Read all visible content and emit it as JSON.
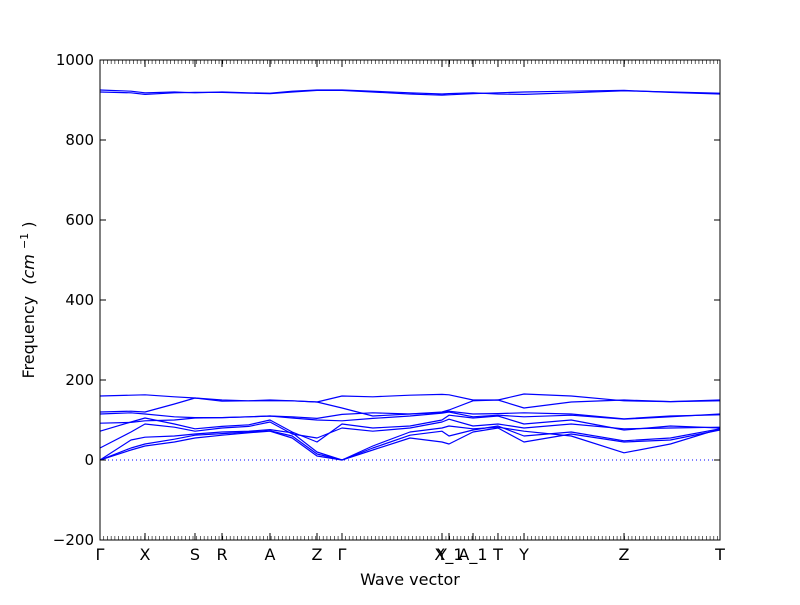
{
  "chart_data": {
    "type": "line",
    "title": "",
    "xlabel": "Wave vector",
    "ylabel": "Frequency",
    "ylabel_unit": "(cm",
    "ylabel_exp": "−1",
    "ylabel_close": ")",
    "ylim": [
      -200,
      1000
    ],
    "yticks": [
      {
        "value": -200,
        "label": "−200"
      },
      {
        "value": 0,
        "label": "0"
      },
      {
        "value": 200,
        "label": "200"
      },
      {
        "value": 400,
        "label": "400"
      },
      {
        "value": 600,
        "label": "600"
      },
      {
        "value": 800,
        "label": "800"
      },
      {
        "value": 1000,
        "label": "1000"
      }
    ],
    "xlim": [
      0,
      100
    ],
    "xticks": [
      {
        "value": 0,
        "label": "Γ"
      },
      {
        "value": 7.26,
        "label": "X"
      },
      {
        "value": 15.32,
        "label": "S"
      },
      {
        "value": 19.68,
        "label": "R"
      },
      {
        "value": 27.42,
        "label": "A"
      },
      {
        "value": 35.0,
        "label": "Z"
      },
      {
        "value": 39.03,
        "label": "Γ"
      },
      {
        "value": 55.16,
        "label": "Y"
      },
      {
        "value": 56.29,
        "label": "X_1"
      },
      {
        "value": 60.16,
        "label": "A_1"
      },
      {
        "value": 64.19,
        "label": "T"
      },
      {
        "value": 68.39,
        "label": "Y"
      },
      {
        "value": 84.52,
        "label": "Z"
      },
      {
        "value": 100,
        "label": "T"
      }
    ],
    "zero_line": {
      "y": 0,
      "style": "dotted"
    },
    "series_color": "#0000ff",
    "series": [
      {
        "x": [
          0,
          5,
          7.26,
          12,
          15.32,
          19.68,
          24,
          27.42,
          31,
          35,
          39.03,
          44,
          50,
          55.16,
          56.29,
          60.16,
          64.19,
          68.39,
          76,
          84.52,
          92,
          100
        ],
        "values": [
          925,
          922,
          918,
          920,
          918,
          920,
          918,
          917,
          922,
          925,
          925,
          922,
          918,
          915,
          916,
          918,
          915,
          914,
          918,
          923,
          920,
          917
        ]
      },
      {
        "x": [
          0,
          5,
          7.26,
          12,
          15.32,
          19.68,
          24,
          27.42,
          31,
          35,
          39.03,
          44,
          50,
          55.16,
          56.29,
          60.16,
          64.19,
          68.39,
          76,
          84.52,
          92,
          100
        ],
        "values": [
          920,
          918,
          914,
          918,
          919,
          919,
          917,
          916,
          920,
          924,
          924,
          920,
          915,
          912,
          913,
          916,
          918,
          920,
          922,
          924,
          919,
          915
        ]
      },
      {
        "x": [
          0,
          5,
          7.26,
          12,
          15.32,
          19.68,
          24,
          27.42,
          31,
          35,
          39.03,
          44,
          50,
          55.16,
          56.29,
          60.16,
          64.19,
          68.39,
          76,
          84.52,
          92,
          100
        ],
        "values": [
          160,
          162,
          163,
          158,
          155,
          147,
          148,
          150,
          148,
          145,
          160,
          158,
          162,
          164,
          163,
          150,
          150,
          165,
          160,
          148,
          146,
          150
        ]
      },
      {
        "x": [
          0,
          5,
          7.26,
          12,
          15.32,
          19.68,
          24,
          27.42,
          31,
          35,
          39.03,
          44,
          50,
          55.16,
          56.29,
          60.16,
          64.19,
          68.39,
          76,
          84.52,
          92,
          100
        ],
        "values": [
          120,
          122,
          120,
          140,
          155,
          150,
          148,
          148,
          148,
          145,
          130,
          110,
          115,
          120,
          125,
          148,
          150,
          130,
          145,
          150,
          146,
          148
        ]
      },
      {
        "x": [
          0,
          5,
          7.26,
          12,
          15.32,
          19.68,
          24,
          27.42,
          31,
          35,
          39.03,
          44,
          50,
          55.16,
          56.29,
          60.16,
          64.19,
          68.39,
          76,
          84.52,
          92,
          100
        ],
        "values": [
          115,
          118,
          115,
          108,
          106,
          106,
          108,
          110,
          108,
          104,
          114,
          118,
          115,
          118,
          122,
          115,
          116,
          118,
          115,
          103,
          110,
          113
        ]
      },
      {
        "x": [
          0,
          5,
          7.26,
          12,
          15.32,
          19.68,
          24,
          27.42,
          31,
          35,
          39.03,
          44,
          50,
          55.16,
          56.29,
          60.16,
          64.19,
          68.39,
          76,
          84.52,
          92,
          100
        ],
        "values": [
          92,
          94,
          98,
          100,
          105,
          106,
          108,
          110,
          105,
          100,
          98,
          104,
          110,
          117,
          120,
          108,
          112,
          108,
          112,
          102,
          108,
          115
        ]
      },
      {
        "x": [
          0,
          5,
          7.26,
          12,
          15.32,
          19.68,
          24,
          27.42,
          31,
          35,
          39.03,
          44,
          50,
          55.16,
          56.29,
          60.16,
          64.19,
          68.39,
          76,
          84.52,
          92,
          100
        ],
        "values": [
          72,
          95,
          105,
          90,
          78,
          84,
          88,
          100,
          70,
          45,
          90,
          80,
          85,
          100,
          112,
          105,
          110,
          90,
          100,
          75,
          85,
          80
        ]
      },
      {
        "x": [
          0,
          5,
          7.26,
          12,
          15.32,
          19.68,
          24,
          27.42,
          31,
          35,
          39.03,
          44,
          50,
          55.16,
          56.29,
          60.16,
          64.19,
          68.39,
          76,
          84.52,
          92,
          100
        ],
        "values": [
          30,
          70,
          90,
          82,
          72,
          80,
          84,
          95,
          65,
          55,
          80,
          72,
          80,
          95,
          102,
          85,
          90,
          80,
          90,
          78,
          80,
          82
        ]
      },
      {
        "x": [
          0,
          5,
          7.26,
          12,
          15.32,
          19.68,
          24,
          27.42,
          31,
          35,
          39.03,
          44,
          50,
          55.16,
          56.29,
          60.16,
          64.19,
          68.39,
          76,
          84.52,
          92,
          100
        ],
        "values": [
          0,
          50,
          57,
          60,
          65,
          70,
          72,
          76,
          68,
          20,
          0,
          35,
          70,
          80,
          85,
          78,
          82,
          72,
          60,
          18,
          40,
          78
        ]
      },
      {
        "x": [
          0,
          5,
          7.26,
          12,
          15.32,
          19.68,
          24,
          27.42,
          31,
          35,
          39.03,
          44,
          50,
          55.16,
          56.29,
          60.16,
          64.19,
          68.39,
          76,
          84.52,
          92,
          100
        ],
        "values": [
          0,
          30,
          40,
          52,
          62,
          66,
          70,
          73,
          60,
          15,
          0,
          30,
          62,
          72,
          60,
          75,
          85,
          60,
          70,
          48,
          55,
          78
        ]
      },
      {
        "x": [
          0,
          5,
          7.26,
          12,
          15.32,
          19.68,
          24,
          27.42,
          31,
          35,
          39.03,
          44,
          50,
          55.16,
          56.29,
          60.16,
          64.19,
          68.39,
          76,
          84.52,
          92,
          100
        ],
        "values": [
          0,
          25,
          35,
          45,
          55,
          62,
          68,
          72,
          55,
          10,
          0,
          25,
          55,
          45,
          40,
          70,
          80,
          45,
          65,
          45,
          50,
          75
        ]
      }
    ]
  }
}
